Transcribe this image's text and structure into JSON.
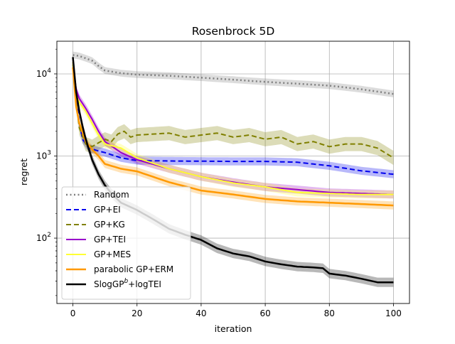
{
  "chart_data": {
    "type": "line",
    "title": "Rosenbrock 5D",
    "xlabel": "iteration",
    "ylabel": "regret",
    "xlim": [
      -5,
      105
    ],
    "ylim": [
      16,
      25000
    ],
    "yscale": "log",
    "grid": true,
    "legend_position": "lower-left",
    "x_ticks": [
      0,
      20,
      40,
      60,
      80,
      100
    ],
    "x_tick_labels": [
      "0",
      "20",
      "40",
      "60",
      "80",
      "100"
    ],
    "y_ticks": [
      100,
      1000,
      10000
    ],
    "y_tick_labels": [
      {
        "base": "10",
        "exp": "2"
      },
      {
        "base": "10",
        "exp": "3"
      },
      {
        "base": "10",
        "exp": "4"
      }
    ],
    "series": [
      {
        "name": "Random",
        "color": "#808080",
        "dash": "dotted",
        "width": 2.5,
        "band": 0.1,
        "points": [
          [
            0,
            17000
          ],
          [
            2,
            16500
          ],
          [
            4,
            15500
          ],
          [
            6,
            14500
          ],
          [
            8,
            12500
          ],
          [
            10,
            11000
          ],
          [
            15,
            10200
          ],
          [
            20,
            9800
          ],
          [
            30,
            9500
          ],
          [
            40,
            9000
          ],
          [
            50,
            8500
          ],
          [
            60,
            8000
          ],
          [
            70,
            7600
          ],
          [
            80,
            7200
          ],
          [
            90,
            6500
          ],
          [
            100,
            5700
          ]
        ]
      },
      {
        "name": "GP+EI",
        "color": "#0000ee",
        "dash": "dashed",
        "width": 2,
        "band": 0.12,
        "points": [
          [
            0,
            14000
          ],
          [
            1,
            5500
          ],
          [
            2,
            2500
          ],
          [
            3,
            1600
          ],
          [
            5,
            1250
          ],
          [
            8,
            1150
          ],
          [
            10,
            1100
          ],
          [
            15,
            950
          ],
          [
            20,
            880
          ],
          [
            30,
            870
          ],
          [
            50,
            860
          ],
          [
            60,
            860
          ],
          [
            70,
            840
          ],
          [
            80,
            760
          ],
          [
            90,
            660
          ],
          [
            100,
            600
          ]
        ]
      },
      {
        "name": "GP+KG",
        "color": "#808000",
        "dash": "dashed",
        "width": 2,
        "band": 0.22,
        "points": [
          [
            0,
            13000
          ],
          [
            1,
            4500
          ],
          [
            2,
            2200
          ],
          [
            4,
            1400
          ],
          [
            6,
            1300
          ],
          [
            8,
            1450
          ],
          [
            10,
            1600
          ],
          [
            12,
            1500
          ],
          [
            14,
            1850
          ],
          [
            16,
            2000
          ],
          [
            18,
            1700
          ],
          [
            20,
            1800
          ],
          [
            25,
            1850
          ],
          [
            30,
            1900
          ],
          [
            35,
            1700
          ],
          [
            40,
            1800
          ],
          [
            45,
            1900
          ],
          [
            50,
            1700
          ],
          [
            55,
            1800
          ],
          [
            60,
            1600
          ],
          [
            65,
            1700
          ],
          [
            70,
            1400
          ],
          [
            75,
            1500
          ],
          [
            80,
            1300
          ],
          [
            85,
            1400
          ],
          [
            90,
            1400
          ],
          [
            95,
            1250
          ],
          [
            100,
            950
          ]
        ]
      },
      {
        "name": "GP+TEI",
        "color": "#9900cc",
        "dash": "solid",
        "width": 2,
        "band": 0.12,
        "points": [
          [
            0,
            14000
          ],
          [
            1,
            6500
          ],
          [
            2,
            5000
          ],
          [
            4,
            3800
          ],
          [
            6,
            2800
          ],
          [
            8,
            2000
          ],
          [
            10,
            1500
          ],
          [
            15,
            1100
          ],
          [
            20,
            900
          ],
          [
            30,
            700
          ],
          [
            40,
            560
          ],
          [
            50,
            480
          ],
          [
            60,
            420
          ],
          [
            70,
            390
          ],
          [
            80,
            360
          ],
          [
            90,
            350
          ],
          [
            100,
            340
          ]
        ]
      },
      {
        "name": "GP+MES",
        "color": "#ffff33",
        "dash": "solid",
        "width": 2,
        "band": 0.12,
        "points": [
          [
            0,
            14000
          ],
          [
            1,
            5500
          ],
          [
            2,
            4500
          ],
          [
            4,
            3500
          ],
          [
            6,
            2500
          ],
          [
            8,
            1800
          ],
          [
            10,
            1400
          ],
          [
            15,
            1250
          ],
          [
            20,
            950
          ],
          [
            30,
            700
          ],
          [
            40,
            560
          ],
          [
            50,
            470
          ],
          [
            60,
            420
          ],
          [
            70,
            360
          ],
          [
            80,
            350
          ],
          [
            90,
            340
          ],
          [
            100,
            340
          ]
        ]
      },
      {
        "name": "parabolic GP+ERM",
        "color": "#ff9900",
        "dash": "solid",
        "width": 2.5,
        "band": 0.12,
        "points": [
          [
            0,
            12000
          ],
          [
            1,
            4000
          ],
          [
            2,
            2500
          ],
          [
            4,
            1500
          ],
          [
            6,
            1200
          ],
          [
            8,
            1000
          ],
          [
            10,
            800
          ],
          [
            15,
            700
          ],
          [
            20,
            650
          ],
          [
            30,
            480
          ],
          [
            40,
            380
          ],
          [
            50,
            340
          ],
          [
            60,
            300
          ],
          [
            70,
            280
          ],
          [
            80,
            270
          ],
          [
            90,
            260
          ],
          [
            100,
            250
          ]
        ]
      },
      {
        "name": "SlogGP",
        "color": "#000000",
        "dash": "solid",
        "width": 2.5,
        "band": 0.14,
        "points": [
          [
            0,
            16000
          ],
          [
            1,
            6000
          ],
          [
            2,
            3500
          ],
          [
            3,
            2300
          ],
          [
            4,
            1600
          ],
          [
            5,
            1200
          ],
          [
            6,
            900
          ],
          [
            8,
            600
          ],
          [
            10,
            440
          ],
          [
            12,
            350
          ],
          [
            15,
            270
          ],
          [
            20,
            220
          ],
          [
            25,
            170
          ],
          [
            30,
            130
          ],
          [
            35,
            110
          ],
          [
            40,
            95
          ],
          [
            45,
            75
          ],
          [
            50,
            65
          ],
          [
            55,
            60
          ],
          [
            60,
            52
          ],
          [
            65,
            48
          ],
          [
            70,
            45
          ],
          [
            75,
            44
          ],
          [
            78,
            43
          ],
          [
            80,
            37
          ],
          [
            85,
            35
          ],
          [
            90,
            32
          ],
          [
            95,
            29
          ],
          [
            100,
            29
          ]
        ]
      }
    ],
    "legend_entries": [
      {
        "label": "Random"
      },
      {
        "label": "GP+EI"
      },
      {
        "label": "GP+KG"
      },
      {
        "label": "GP+TEI"
      },
      {
        "label": "GP+MES"
      },
      {
        "label": "parabolic GP+ERM"
      },
      {
        "label": "SlogGP",
        "sup": "b",
        "suffix": "+logTEI"
      }
    ]
  }
}
